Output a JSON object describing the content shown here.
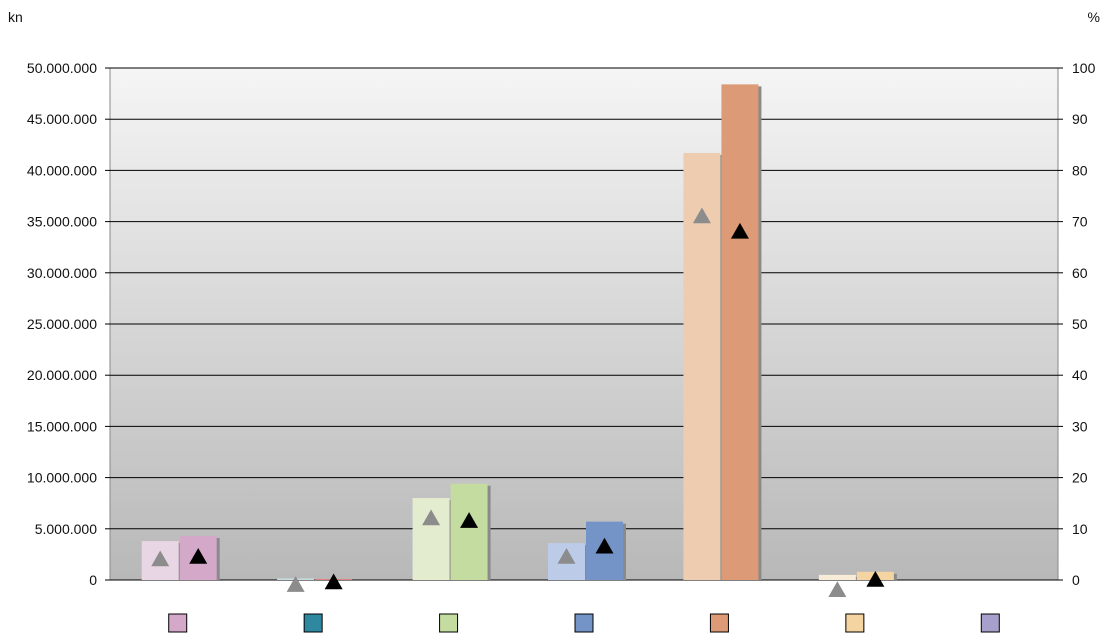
{
  "chart_data": {
    "type": "bar",
    "y_left_unit": "kn",
    "y_right_unit": "%",
    "y_left_ticks": [
      "0",
      "5.000.000",
      "10.000.000",
      "15.000.000",
      "20.000.000",
      "25.000.000",
      "30.000.000",
      "35.000.000",
      "40.000.000",
      "45.000.000",
      "50.000.000"
    ],
    "y_right_ticks": [
      "0",
      "10",
      "20",
      "30",
      "40",
      "50",
      "60",
      "70",
      "80",
      "90",
      "100"
    ],
    "ylim_left": [
      0,
      50000000
    ],
    "ylim_right": [
      0,
      100
    ],
    "grid": true,
    "categories": [
      "",
      "",
      "",
      "",
      "",
      "",
      ""
    ],
    "category_colors": [
      "#d3a8c8",
      "#2e88a0",
      "#c4dca0",
      "#7494c8",
      "#dc9a76",
      "#f4d4a0",
      "#a8a0cc"
    ],
    "series": [
      {
        "axis": "left",
        "values": [
          3800000,
          150000,
          8000000,
          3600000,
          41700000,
          500000,
          0
        ],
        "colors": [
          "#e8d6e4",
          "#c8dce4",
          "#e4ecd0",
          "#bccce8",
          "#eeccb0",
          "#f8ecd8",
          "#e0dcec"
        ]
      },
      {
        "axis": "left",
        "values": [
          4300000,
          100000,
          9400000,
          5700000,
          48400000,
          800000,
          0
        ],
        "colors": [
          "#d3a8c8",
          "#e08080",
          "#c4dca0",
          "#7494c8",
          "#dc9a76",
          "#f4d4a0",
          "#a8a0cc"
        ]
      },
      {
        "axis": "right",
        "type": "marker",
        "marker": "triangle",
        "color": "#8c8c8c",
        "values": [
          4,
          -1,
          12,
          4.5,
          71,
          -2,
          null
        ]
      },
      {
        "axis": "right",
        "type": "marker",
        "marker": "triangle",
        "color": "#000000",
        "values": [
          4.5,
          -0.5,
          11.5,
          6.5,
          68,
          0,
          null
        ]
      }
    ]
  }
}
